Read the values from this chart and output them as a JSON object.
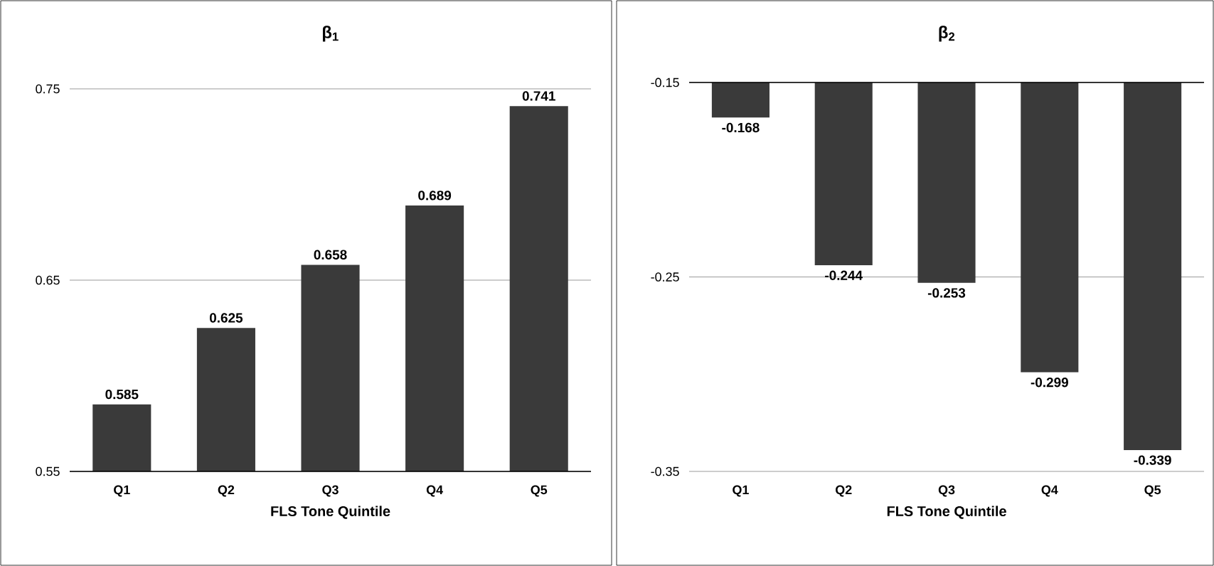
{
  "chart_data": [
    {
      "type": "bar",
      "title": "β$_{1}$",
      "xlabel": "FLS Tone Quintile",
      "categories": [
        "Q1",
        "Q2",
        "Q3",
        "Q4",
        "Q5"
      ],
      "values": [
        0.585,
        0.625,
        0.658,
        0.689,
        0.741
      ],
      "color": "#3a3a3a",
      "ylim": [
        0.55,
        0.75
      ],
      "yticks": [
        0.55,
        0.65,
        0.75
      ],
      "grid": "y",
      "data_labels": true
    },
    {
      "type": "bar",
      "title": "β$_{2}$",
      "xlabel": "FLS Tone Quintile",
      "categories": [
        "Q1",
        "Q2",
        "Q3",
        "Q4",
        "Q5"
      ],
      "values": [
        -0.168,
        -0.244,
        -0.253,
        -0.299,
        -0.339
      ],
      "color": "#3a3a3a",
      "ylim": [
        -0.35,
        -0.15
      ],
      "yticks": [
        -0.35,
        -0.25,
        -0.15
      ],
      "grid": "y",
      "data_labels": true
    }
  ]
}
